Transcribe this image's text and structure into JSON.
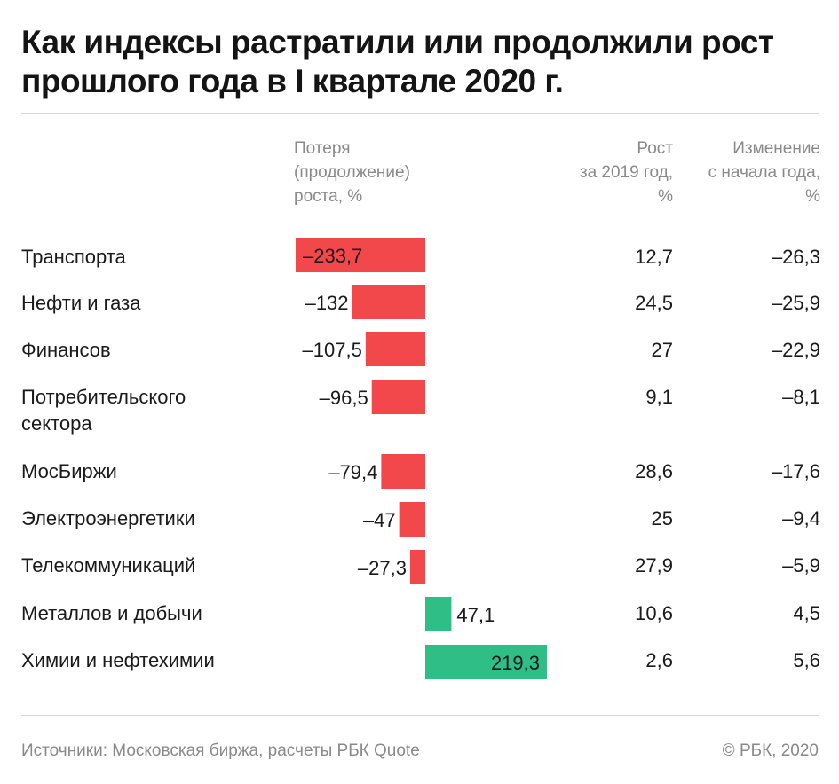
{
  "title": "Как индексы растратили или продолжили рост прошлого года в I квартале 2020 г.",
  "headers": {
    "loss": "Потеря\n(продолжение)\nроста, %",
    "growth": "Рост\nза 2019 год,\n%",
    "change": "Изменение\nс начала года,\n%"
  },
  "footer": {
    "sources": "Источники: Московская биржа, расчеты РБК Quote",
    "copyright": "© РБК, 2020"
  },
  "colors": {
    "negative": "#f2474b",
    "positive": "#2fbf86"
  },
  "rows": [
    {
      "label": "Транспорта",
      "value_label": "–233,7",
      "growth_2019": "12,7",
      "change_ytd": "–26,3"
    },
    {
      "label": "Нефти и газа",
      "value_label": "–132",
      "growth_2019": "24,5",
      "change_ytd": "–25,9"
    },
    {
      "label": "Финансов",
      "value_label": "–107,5",
      "growth_2019": "27",
      "change_ytd": "–22,9"
    },
    {
      "label": "Потребительского\nсектора",
      "value_label": "–96,5",
      "growth_2019": "9,1",
      "change_ytd": "–8,1"
    },
    {
      "label": "МосБиржи",
      "value_label": "–79,4",
      "growth_2019": "28,6",
      "change_ytd": "–17,6"
    },
    {
      "label": "Электроэнергетики",
      "value_label": "–47",
      "growth_2019": "25",
      "change_ytd": "–9,4"
    },
    {
      "label": "Телекоммуникаций",
      "value_label": "–27,3",
      "growth_2019": "27,9",
      "change_ytd": "–5,9"
    },
    {
      "label": "Металлов и добычи",
      "value_label": "47,1",
      "growth_2019": "10,6",
      "change_ytd": "4,5"
    },
    {
      "label": "Химии и нефтехимии",
      "value_label": "219,3",
      "growth_2019": "2,6",
      "change_ytd": "5,6"
    }
  ],
  "chart_data": {
    "type": "bar",
    "orientation": "horizontal",
    "categories": [
      "Транспорта",
      "Нефти и газа",
      "Финансов",
      "Потребительского сектора",
      "МосБиржи",
      "Электроэнергетики",
      "Телекоммуникаций",
      "Металлов и добычи",
      "Химии и нефтехимии"
    ],
    "values": [
      -233.7,
      -132,
      -107.5,
      -96.5,
      -79.4,
      -47,
      -27.3,
      47.1,
      219.3
    ],
    "grid": false,
    "legend": "none"
  }
}
